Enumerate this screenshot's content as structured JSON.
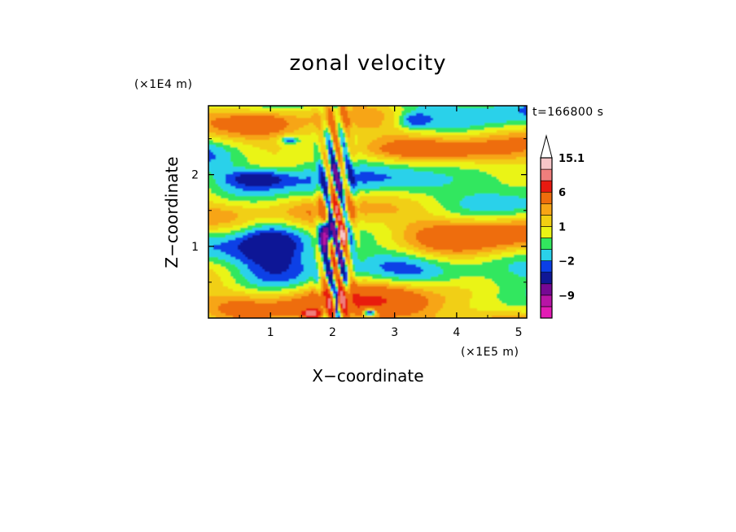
{
  "chart_data": {
    "type": "heatmap",
    "title": "zonal velocity",
    "xlabel": "X−coordinate",
    "ylabel": "Z−coordinate",
    "x_unit": "(×1E5 m)",
    "y_unit": "(×1E4 m)",
    "time_label": "t=166800 s",
    "xlim": [
      0,
      5.13
    ],
    "ylim": [
      0,
      2.96
    ],
    "x_ticks": [
      1,
      2,
      3,
      4,
      5
    ],
    "y_ticks": [
      1,
      2
    ],
    "colorbar": {
      "levels": [
        -15,
        -12,
        -9,
        -6,
        -3,
        -2,
        -1,
        0,
        1,
        2,
        3,
        6,
        9,
        12,
        15.1
      ],
      "tick_labels": [
        "15.1",
        "6",
        "1",
        "−2",
        "−9"
      ],
      "tick_values": [
        15.1,
        6,
        1,
        -2,
        -9
      ],
      "colors": [
        "#e21bb4",
        "#b814a6",
        "#760894",
        "#101796",
        "#0b3fe6",
        "#2ad1ea",
        "#32e75e",
        "#eaf415",
        "#f1cf12",
        "#f7a515",
        "#ee6d0c",
        "#e81a10",
        "#ef7e7c",
        "#f7c6c8",
        "#ffffff"
      ],
      "extend": "max"
    }
  }
}
